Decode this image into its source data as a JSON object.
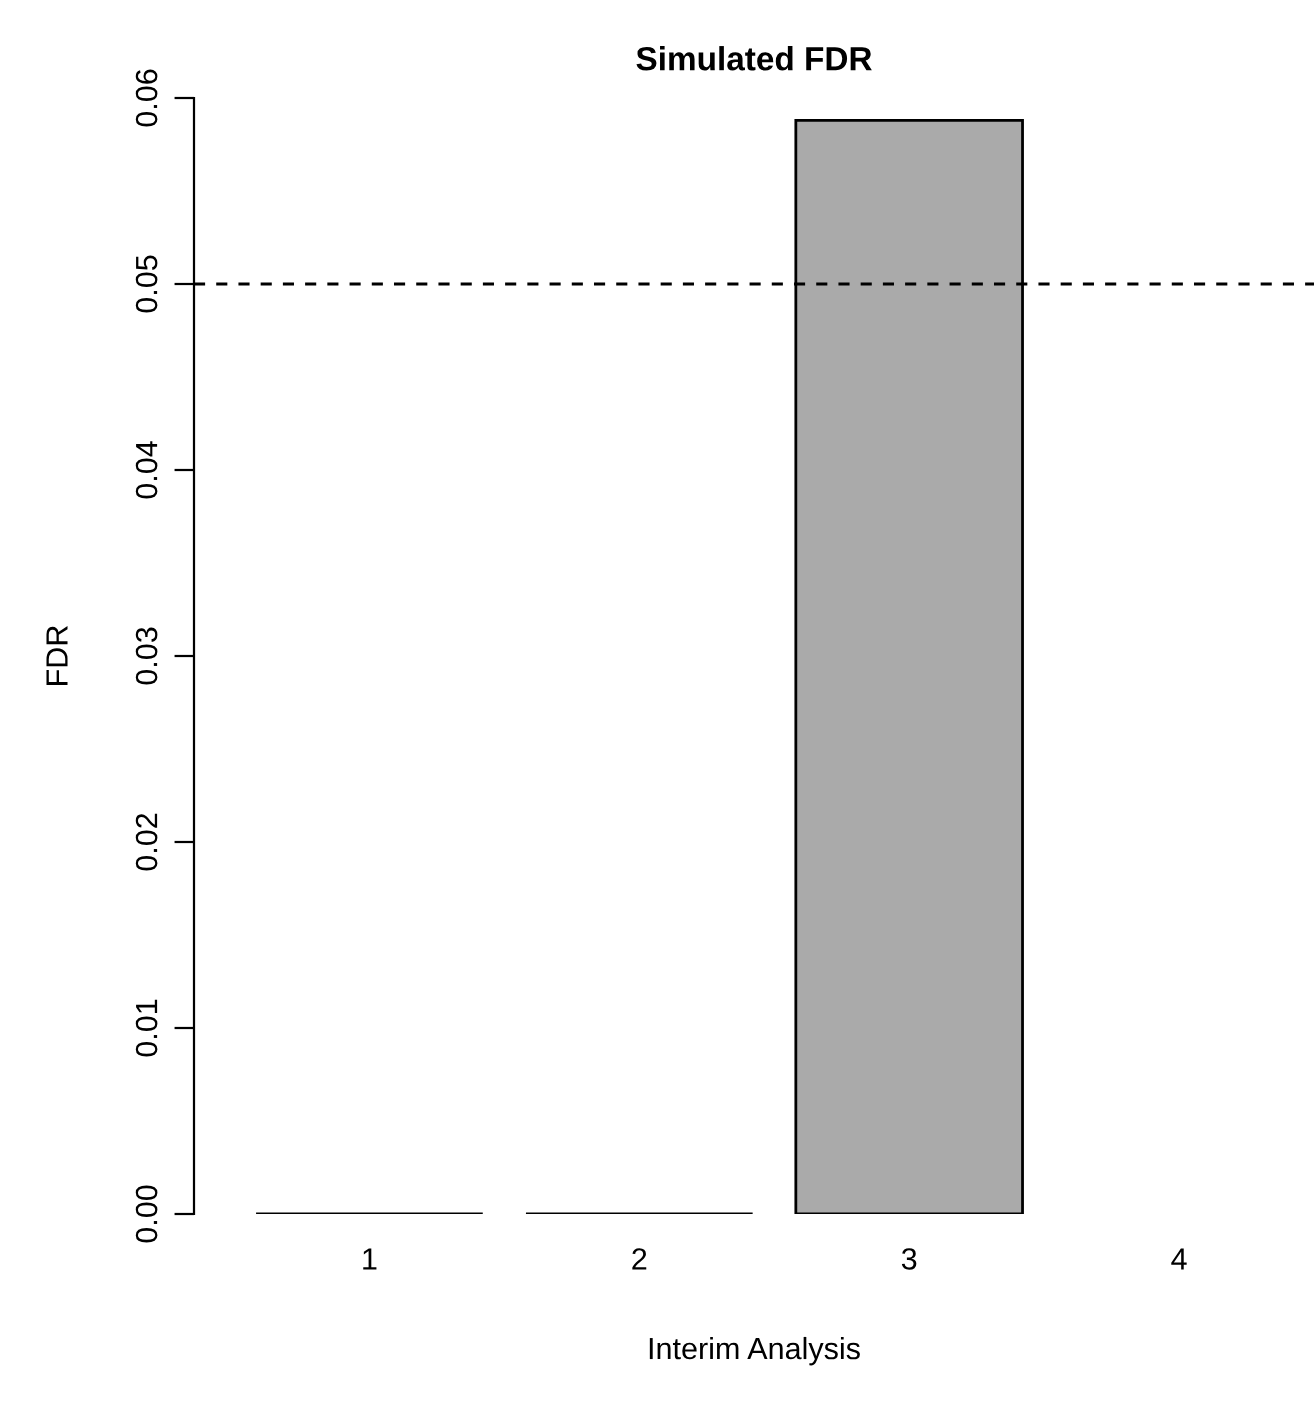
{
  "chart_data": {
    "type": "bar",
    "title": "Simulated FDR",
    "xlabel": "Interim Analysis",
    "ylabel": "FDR",
    "categories": [
      "1",
      "2",
      "3",
      "4"
    ],
    "values": [
      0,
      0,
      0.0588,
      null
    ],
    "color": "#aaaaaa",
    "ylim": [
      0,
      0.06
    ],
    "yticks": [
      {
        "value": 0,
        "label": "0.00"
      },
      {
        "value": 0.01,
        "label": "0.01"
      },
      {
        "value": 0.02,
        "label": "0.02"
      },
      {
        "value": 0.03,
        "label": "0.03"
      },
      {
        "value": 0.04,
        "label": "0.04"
      },
      {
        "value": 0.05,
        "label": "0.05"
      },
      {
        "value": 0.06,
        "label": "0.06"
      }
    ],
    "ref_lines": [
      {
        "axis": "y",
        "value": 0.05,
        "line_style": "dashed",
        "color": "#000000"
      }
    ],
    "grid": false,
    "legend": false
  }
}
